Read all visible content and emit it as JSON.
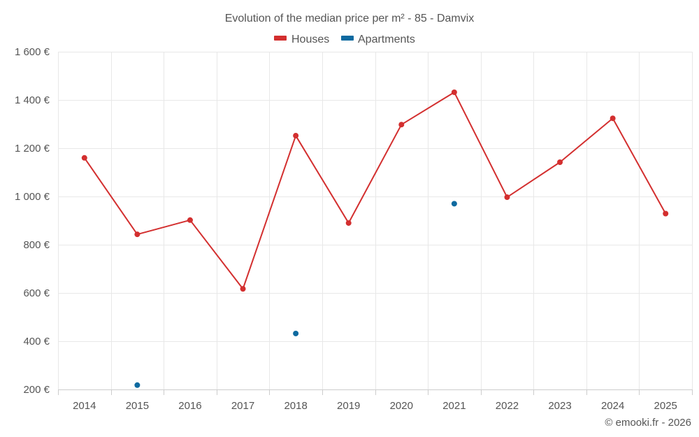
{
  "chart_data": {
    "type": "line",
    "title": "Evolution of the median price per m² - 85 - Damvix",
    "categories": [
      "2014",
      "2015",
      "2016",
      "2017",
      "2018",
      "2019",
      "2020",
      "2021",
      "2022",
      "2023",
      "2024",
      "2025"
    ],
    "series": [
      {
        "name": "Houses",
        "color": "#d32f2f",
        "connected": true,
        "values": [
          1160,
          843,
          902,
          617,
          1252,
          890,
          1298,
          1432,
          997,
          1142,
          1324,
          929
        ]
      },
      {
        "name": "Apartments",
        "color": "#0d6aa0",
        "connected": false,
        "values": [
          null,
          218,
          null,
          null,
          432,
          null,
          null,
          970,
          null,
          null,
          null,
          null
        ]
      }
    ],
    "yticks": [
      200,
      400,
      600,
      800,
      1000,
      1200,
      1400,
      1600
    ],
    "ytick_labels": [
      "200 €",
      "400 €",
      "600 €",
      "800 €",
      "1 000 €",
      "1 200 €",
      "1 400 €",
      "1 600 €"
    ],
    "ylim": [
      200,
      1600
    ],
    "grid": true,
    "legend_position": "top-center",
    "xlabel": "",
    "ylabel": ""
  },
  "credit": "© emooki.fr - 2026"
}
